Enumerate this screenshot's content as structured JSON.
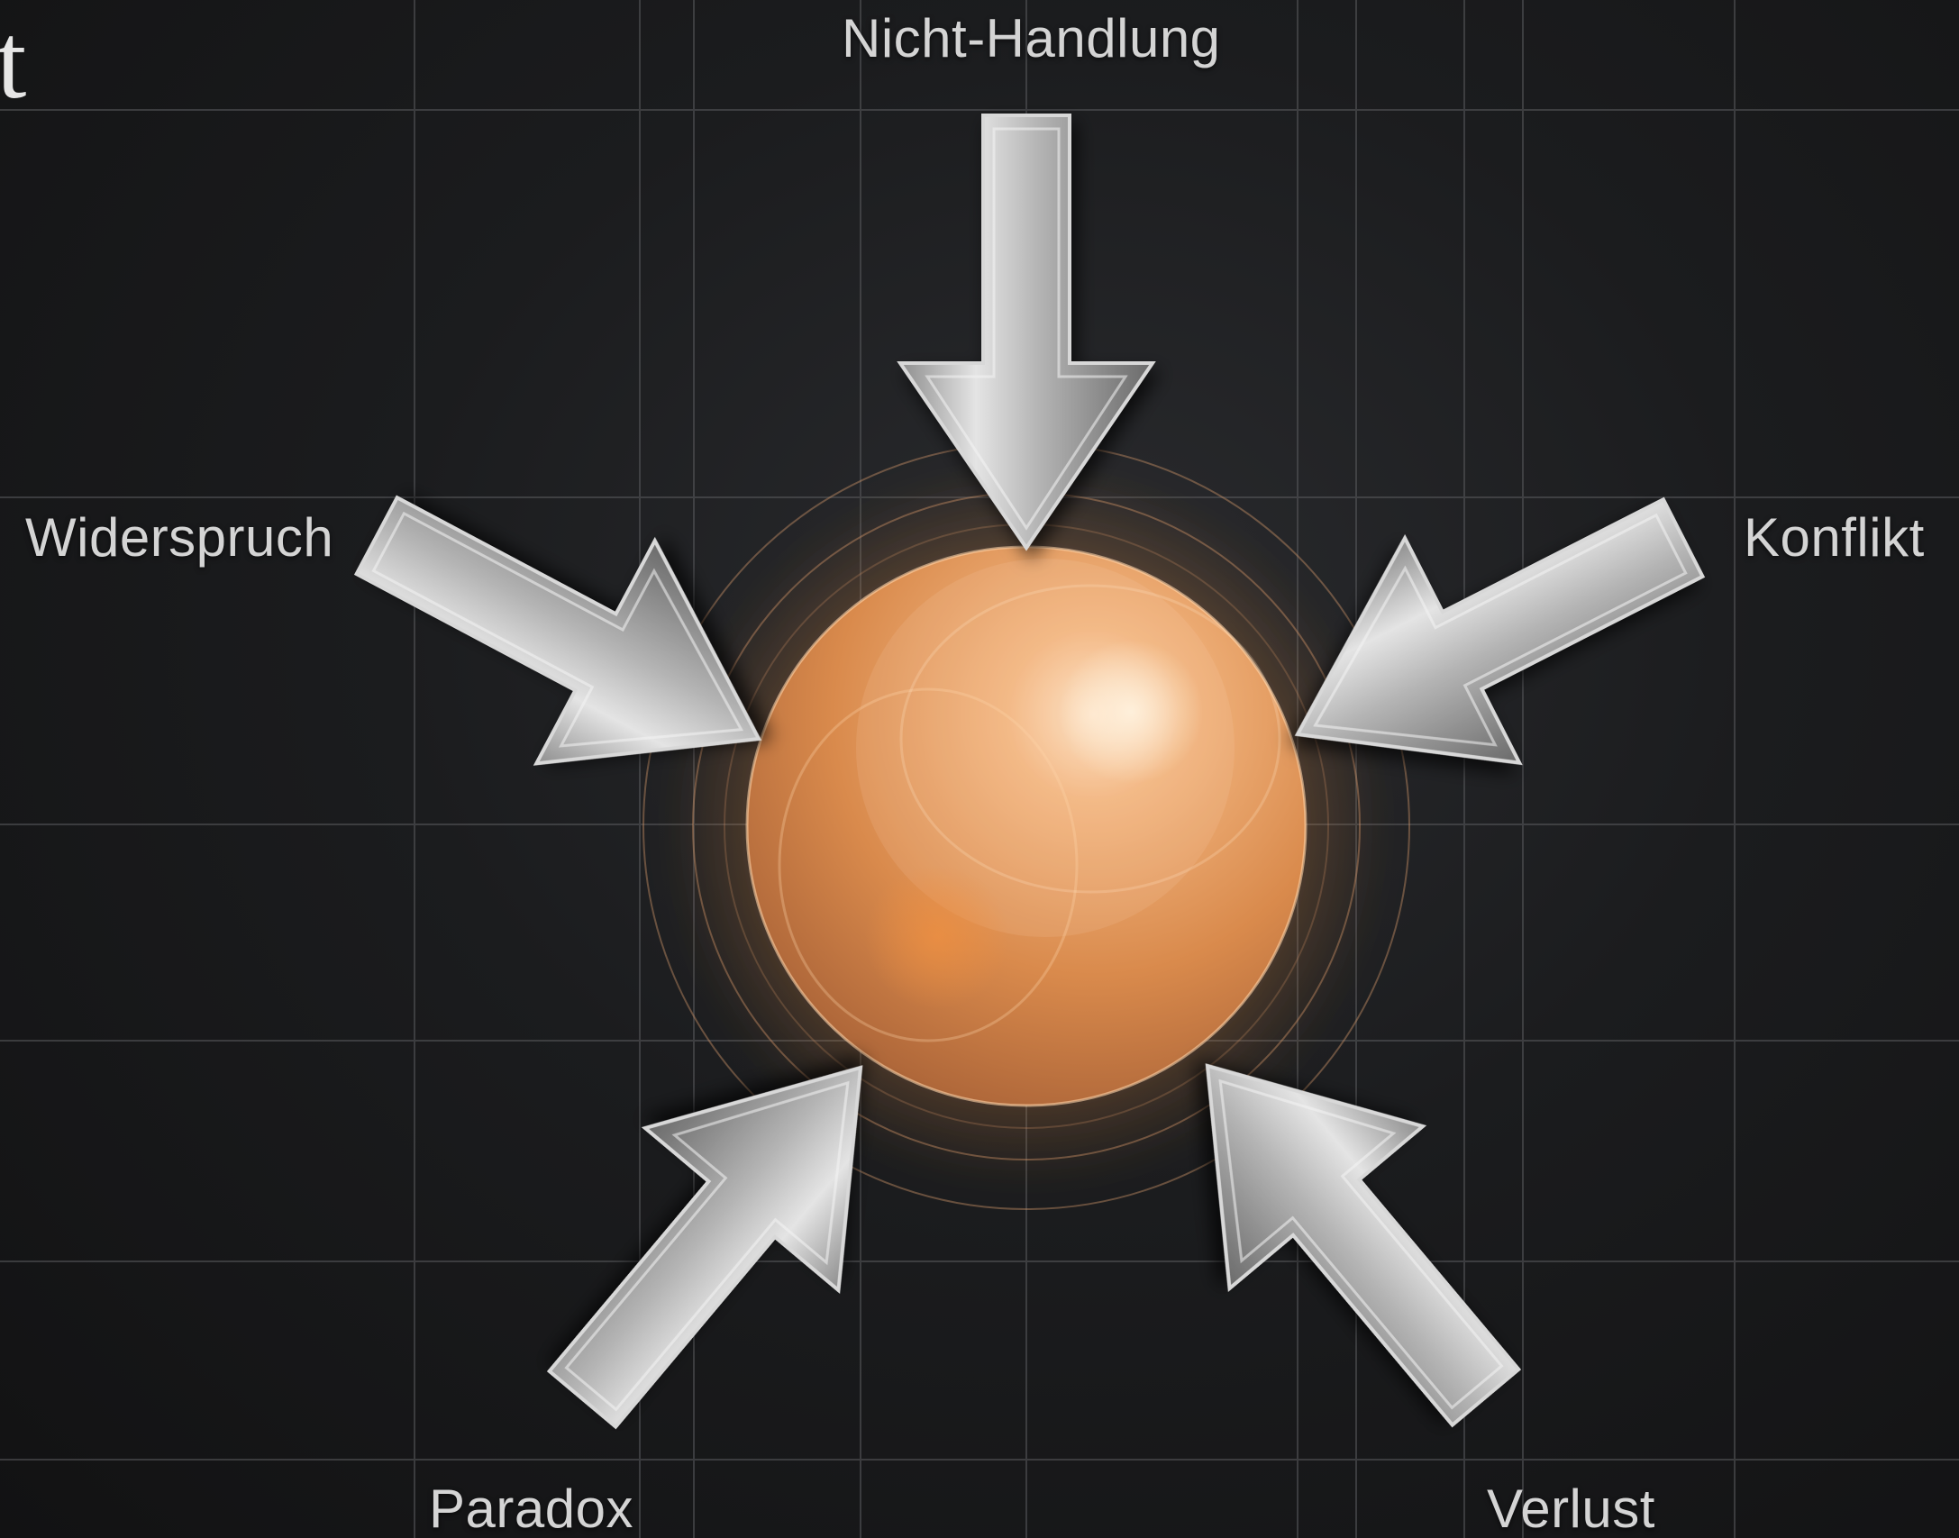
{
  "corner_text": "t",
  "labels": {
    "top": "Nicht-Handlung",
    "left": "Widerspruch",
    "right": "Konflikt",
    "bottom_left": "Paradox",
    "bottom_right": "Verlust"
  },
  "colors": {
    "background": "#1b1c1e",
    "grid": "#5a5b5e",
    "sphere_light": "#f7c08e",
    "sphere_mid": "#e0904e",
    "sphere_dark": "#9a5a2a",
    "arrow_light": "#e2e2e2",
    "arrow_mid": "#a4a4a4",
    "arrow_dark": "#6c6c6c",
    "label_text": "#d4d4d4"
  },
  "arrows": [
    {
      "name": "nicht-handlung-arrow",
      "icon": "arrow-down-icon"
    },
    {
      "name": "widerspruch-arrow",
      "icon": "arrow-down-right-icon"
    },
    {
      "name": "konflikt-arrow",
      "icon": "arrow-down-left-icon"
    },
    {
      "name": "paradox-arrow",
      "icon": "arrow-up-right-icon"
    },
    {
      "name": "verlust-arrow",
      "icon": "arrow-up-left-icon"
    }
  ],
  "center": {
    "icon": "glowing-orb-icon"
  }
}
